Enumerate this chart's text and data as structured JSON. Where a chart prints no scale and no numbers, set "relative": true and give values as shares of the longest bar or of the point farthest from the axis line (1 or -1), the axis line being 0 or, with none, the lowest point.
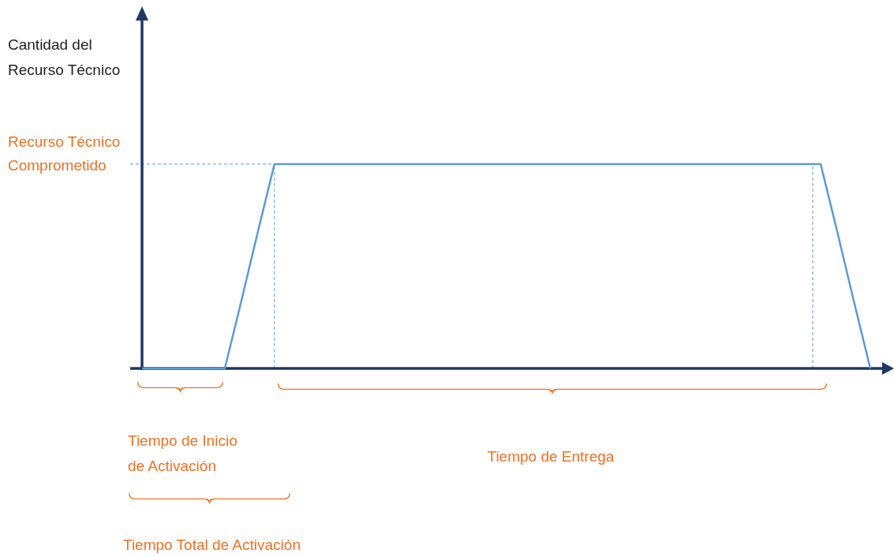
{
  "chart_data": {
    "type": "line",
    "relative": true,
    "categories": [
      null,
      null,
      null,
      null,
      null,
      null,
      null,
      null,
      null,
      null,
      null,
      null,
      null,
      null,
      null,
      null,
      null,
      null,
      null,
      null,
      null,
      null,
      null,
      null,
      null,
      null,
      null,
      null,
      null,
      null,
      null,
      null,
      null,
      null,
      null,
      null,
      null,
      null,
      null,
      null,
      null,
      null,
      null,
      null,
      null
    ],
    "series": [
      {
        "color": "#5b9bd5",
        "values": [
          0,
          0,
          0,
          0,
          0,
          0,
          0.33,
          0.67,
          1,
          1,
          1,
          1,
          1,
          1,
          1,
          1,
          1,
          1,
          1,
          1,
          1,
          1,
          1,
          1,
          1,
          1,
          1,
          1,
          1,
          1,
          1,
          1,
          1,
          1,
          1,
          1,
          1,
          1,
          1,
          1,
          1,
          1,
          0.67,
          0.33,
          0
        ]
      }
    ],
    "ref_lines": [
      {
        "axis": "y",
        "value": 1,
        "label": "Recurso Técnico Comprometido",
        "color": "#5b9bd5",
        "line_style": "dashed"
      }
    ],
    "annotations": [
      "Tiempo de Inicio de Activación",
      "Tiempo de Entrega",
      "Tiempo Total de Activación",
      "Cantidad del Recurso Técnico"
    ]
  }
}
